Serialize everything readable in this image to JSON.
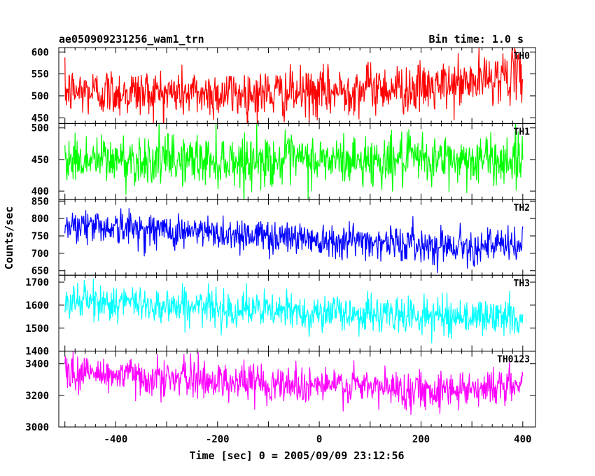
{
  "figure": {
    "title_left": "ae050909231256_wam1_trn",
    "title_right": "Bin time: 1.0 s",
    "xlabel": "Time [sec] 0 = 2005/09/09 23:12:56",
    "ylabel": "Counts/sec",
    "xlim": [
      -512,
      425
    ],
    "xticks": [
      -400,
      -200,
      0,
      200,
      400
    ]
  },
  "chart_data": [
    {
      "type": "line",
      "name": "TH0",
      "color": "#ff0000",
      "ylim": [
        437,
        610
      ],
      "yticks": [
        450,
        500,
        550,
        600
      ],
      "x_range": [
        -500,
        400
      ],
      "bin_time_s": 1.0,
      "trend": [
        [
          -500,
          510
        ],
        [
          -200,
          505
        ],
        [
          0,
          505
        ],
        [
          100,
          520
        ],
        [
          200,
          515
        ],
        [
          300,
          530
        ],
        [
          350,
          545
        ],
        [
          400,
          550
        ]
      ],
      "noise": 28
    },
    {
      "type": "line",
      "name": "TH1",
      "color": "#00ff00",
      "ylim": [
        387,
        507
      ],
      "yticks": [
        400,
        450,
        500
      ],
      "x_range": [
        -500,
        400
      ],
      "bin_time_s": 1.0,
      "trend": [
        [
          -500,
          450
        ],
        [
          0,
          448
        ],
        [
          400,
          450
        ]
      ],
      "noise": 20
    },
    {
      "type": "line",
      "name": "TH2",
      "color": "#0000ff",
      "ylim": [
        637,
        855
      ],
      "yticks": [
        650,
        700,
        750,
        800,
        850
      ],
      "x_range": [
        -500,
        400
      ],
      "bin_time_s": 1.0,
      "trend": [
        [
          -500,
          785
        ],
        [
          -300,
          765
        ],
        [
          -100,
          750
        ],
        [
          100,
          735
        ],
        [
          200,
          725
        ],
        [
          400,
          720
        ]
      ],
      "noise": 25
    },
    {
      "type": "line",
      "name": "TH3",
      "color": "#00ffff",
      "ylim": [
        1400,
        1730
      ],
      "yticks": [
        1400,
        1500,
        1600,
        1700
      ],
      "x_range": [
        -500,
        400
      ],
      "bin_time_s": 1.0,
      "trend": [
        [
          -500,
          1620
        ],
        [
          -300,
          1600
        ],
        [
          -100,
          1575
        ],
        [
          100,
          1560
        ],
        [
          400,
          1545
        ]
      ],
      "noise": 40
    },
    {
      "type": "line",
      "name": "TH0123",
      "color": "#ff00ff",
      "ylim": [
        3000,
        3480
      ],
      "yticks": [
        3000,
        3200,
        3400
      ],
      "x_range": [
        -500,
        400
      ],
      "bin_time_s": 1.0,
      "trend": [
        [
          -500,
          3350
        ],
        [
          -300,
          3310
        ],
        [
          -100,
          3280
        ],
        [
          100,
          3250
        ],
        [
          200,
          3235
        ],
        [
          400,
          3260
        ]
      ],
      "noise": 60
    }
  ]
}
